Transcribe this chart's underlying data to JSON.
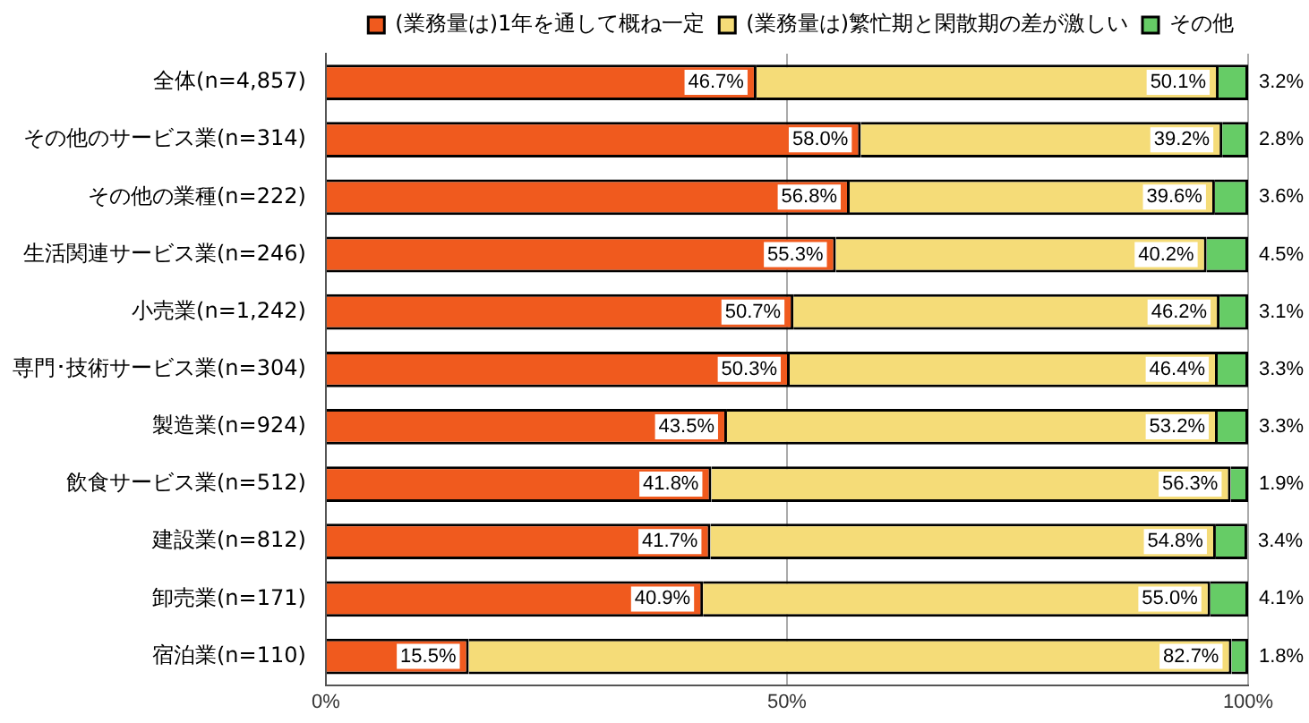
{
  "chart_data": {
    "type": "bar",
    "orientation": "horizontal",
    "stacked": true,
    "legend": "top right",
    "grid": "x",
    "categories": [
      "全体(n=4,857)",
      "その他のサービス業(n=314)",
      "その他の業種(n=222)",
      "生活関連サービス業(n=246)",
      "小売業(n=1,242)",
      "専門･技術サービス業(n=304)",
      "製造業(n=924)",
      "飲食サービス業(n=512)",
      "建設業(n=812)",
      "卸売業(n=171)",
      "宿泊業(n=110)"
    ],
    "xlim": [
      0,
      100
    ],
    "xticks": [
      {
        "value": 0,
        "label": "0%"
      },
      {
        "value": 50,
        "label": "50%"
      },
      {
        "value": 100,
        "label": "100%"
      }
    ],
    "series": [
      {
        "name": "(業務量は)1年を通して概ね一定",
        "color": "#f05a1e",
        "values": [
          46.7,
          58.0,
          56.8,
          55.3,
          50.7,
          50.3,
          43.5,
          41.8,
          41.7,
          40.9,
          15.5
        ],
        "value_labels": [
          "46.7%",
          "58.0%",
          "56.8%",
          "55.3%",
          "50.7%",
          "50.3%",
          "43.5%",
          "41.8%",
          "41.7%",
          "40.9%",
          "15.5%"
        ]
      },
      {
        "name": "(業務量は)繁忙期と閑散期の差が激しい",
        "color": "#f5dc78",
        "values": [
          50.1,
          39.2,
          39.6,
          40.2,
          46.2,
          46.4,
          53.2,
          56.3,
          54.8,
          55.0,
          82.7
        ],
        "value_labels": [
          "50.1%",
          "39.2%",
          "39.6%",
          "40.2%",
          "46.2%",
          "46.4%",
          "53.2%",
          "56.3%",
          "54.8%",
          "55.0%",
          "82.7%"
        ]
      },
      {
        "name": "その他",
        "color": "#66cc66",
        "values": [
          3.2,
          2.8,
          3.6,
          4.5,
          3.1,
          3.3,
          3.3,
          1.9,
          3.4,
          4.1,
          1.8
        ],
        "value_labels": [
          "3.2%",
          "2.8%",
          "3.6%",
          "4.5%",
          "3.1%",
          "3.3%",
          "3.3%",
          "1.9%",
          "3.4%",
          "4.1%",
          "1.8%"
        ]
      }
    ]
  }
}
